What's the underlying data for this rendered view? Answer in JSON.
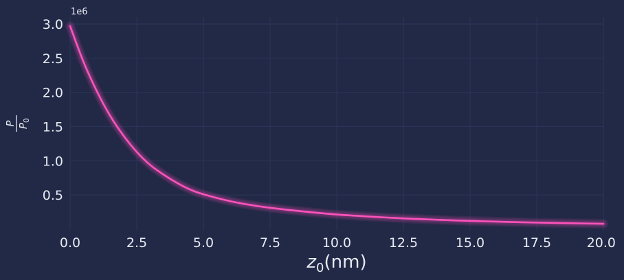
{
  "chart_data": {
    "type": "line",
    "title": "",
    "xlabel": {
      "main": "z",
      "sub": "0",
      "unit": "(nm)"
    },
    "ylabel": {
      "numerator": "P",
      "denominator": "P",
      "denominator_sub": "0"
    },
    "y_offset_label": "1e6",
    "xlim": [
      0,
      20
    ],
    "ylim": [
      0.0,
      3.0
    ],
    "xticks": [
      {
        "value": 0,
        "label": "0.0"
      },
      {
        "value": 2.5,
        "label": "2.5"
      },
      {
        "value": 5,
        "label": "5.0"
      },
      {
        "value": 7.5,
        "label": "7.5"
      },
      {
        "value": 10,
        "label": "10.0"
      },
      {
        "value": 12.5,
        "label": "12.5"
      },
      {
        "value": 15,
        "label": "15.0"
      },
      {
        "value": 17.5,
        "label": "17.5"
      },
      {
        "value": 20,
        "label": "20.0"
      }
    ],
    "yticks": [
      {
        "value": 0.5,
        "label": "0.5"
      },
      {
        "value": 1.0,
        "label": "1.0"
      },
      {
        "value": 1.5,
        "label": "1.5"
      },
      {
        "value": 2.0,
        "label": "2.0"
      },
      {
        "value": 2.5,
        "label": "2.5"
      },
      {
        "value": 3.0,
        "label": "3.0"
      }
    ],
    "grid": true,
    "series": [
      {
        "color": "#fe53bb",
        "x": [
          0,
          0.5,
          1,
          1.5,
          2,
          2.5,
          3,
          3.5,
          4,
          4.5,
          5,
          6,
          7,
          8,
          9,
          10,
          11,
          12,
          13,
          14,
          15,
          16,
          17,
          18,
          19,
          20
        ],
        "y": [
          2.97,
          2.45,
          2.02,
          1.66,
          1.37,
          1.13,
          0.94,
          0.8,
          0.68,
          0.58,
          0.51,
          0.41,
          0.34,
          0.29,
          0.25,
          0.215,
          0.19,
          0.168,
          0.15,
          0.135,
          0.122,
          0.111,
          0.101,
          0.093,
          0.086,
          0.08
        ]
      }
    ]
  }
}
